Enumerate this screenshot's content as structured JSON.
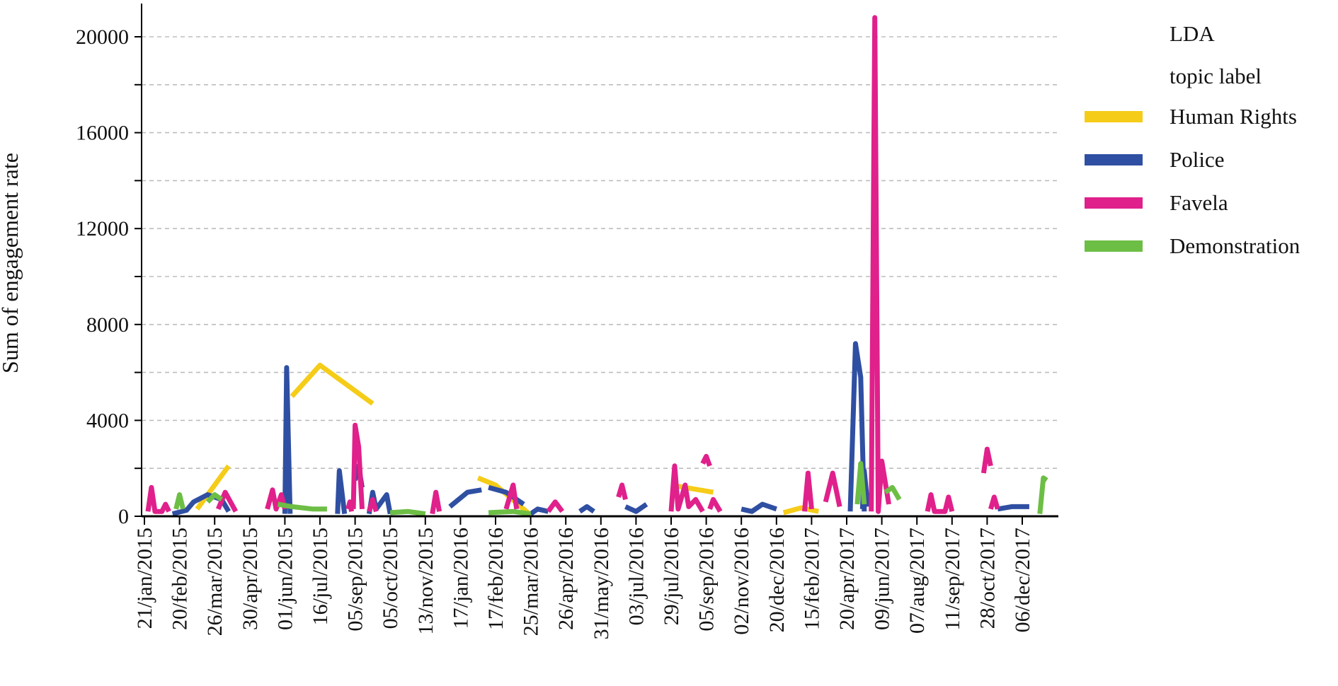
{
  "chart_data": {
    "type": "line",
    "title": "",
    "xlabel": "",
    "ylabel": "Sum of engagement rate",
    "ylim": [
      0,
      21000
    ],
    "yticks": [
      0,
      4000,
      8000,
      12000,
      16000,
      20000
    ],
    "grid": true,
    "legend_position": "top-right",
    "legend_title_lines": [
      "LDA",
      "topic label"
    ],
    "x_tick_labels": [
      "21/jan/2015",
      "20/feb/2015",
      "26/mar/2015",
      "30/apr/2015",
      "01/jun/2015",
      "16/jul/2015",
      "05/sep/2015",
      "05/oct/2015",
      "13/nov/2015",
      "17/jan/2016",
      "17/feb/2016",
      "25/mar/2016",
      "26/apr/2016",
      "31/may/2016",
      "03/jul/2016",
      "29/jul/2016",
      "05/sep/2016",
      "02/nov/2016",
      "20/dec/2016",
      "15/feb/2017",
      "20/apr/2017",
      "09/jun/2017",
      "07/aug/2017",
      "11/sep/2017",
      "28/oct/2017",
      "06/dec/2017"
    ],
    "series": [
      {
        "name": "Human Rights",
        "color": "#F5CC18",
        "segments": [
          [
            [
              1.5,
              300
            ],
            [
              2.4,
              2100
            ]
          ],
          [
            [
              4.2,
              5000
            ],
            [
              5.0,
              6300
            ],
            [
              6.5,
              4700
            ]
          ],
          [
            [
              9.5,
              1600
            ],
            [
              10.0,
              1300
            ],
            [
              11.0,
              50
            ]
          ],
          [
            [
              15.0,
              1300
            ],
            [
              16.2,
              1000
            ]
          ],
          [
            [
              18.2,
              150
            ],
            [
              18.7,
              350
            ],
            [
              19.2,
              200
            ]
          ]
        ]
      },
      {
        "name": "Police",
        "color": "#2F4FA2",
        "segments": [
          [
            [
              0.8,
              100
            ],
            [
              1.2,
              250
            ],
            [
              1.4,
              600
            ],
            [
              1.8,
              900
            ],
            [
              2.2,
              700
            ],
            [
              2.4,
              200
            ]
          ],
          [
            [
              4.0,
              100
            ],
            [
              4.05,
              6200
            ],
            [
              4.15,
              100
            ]
          ],
          [
            [
              5.5,
              100
            ],
            [
              5.55,
              1900
            ],
            [
              5.7,
              100
            ]
          ],
          [
            [
              6.0,
              1500
            ],
            [
              6.1,
              2100
            ],
            [
              6.2,
              1200
            ]
          ],
          [
            [
              6.4,
              100
            ],
            [
              6.5,
              1000
            ],
            [
              6.6,
              300
            ],
            [
              6.9,
              900
            ],
            [
              7.0,
              100
            ]
          ],
          [
            [
              8.7,
              400
            ],
            [
              9.2,
              1000
            ],
            [
              9.6,
              1100
            ]
          ],
          [
            [
              9.8,
              1200
            ],
            [
              10.3,
              1000
            ],
            [
              10.8,
              500
            ]
          ],
          [
            [
              11.0,
              100
            ],
            [
              11.2,
              300
            ],
            [
              11.5,
              200
            ]
          ],
          [
            [
              12.4,
              200
            ],
            [
              12.6,
              400
            ],
            [
              12.8,
              200
            ]
          ],
          [
            [
              13.7,
              400
            ],
            [
              14.0,
              200
            ],
            [
              14.3,
              500
            ]
          ],
          [
            [
              17.0,
              300
            ],
            [
              17.3,
              200
            ],
            [
              17.6,
              500
            ],
            [
              18.0,
              300
            ]
          ],
          [
            [
              20.1,
              200
            ],
            [
              20.25,
              7200
            ],
            [
              20.4,
              5800
            ],
            [
              20.5,
              200
            ]
          ],
          [
            [
              20.45,
              300
            ],
            [
              20.5,
              1900
            ],
            [
              20.6,
              400
            ]
          ],
          [
            [
              24.3,
              300
            ],
            [
              24.7,
              400
            ],
            [
              25.2,
              400
            ]
          ]
        ]
      },
      {
        "name": "Favela",
        "color": "#E0208B",
        "segments": [
          [
            [
              0.1,
              200
            ],
            [
              0.2,
              1200
            ],
            [
              0.3,
              200
            ],
            [
              0.5,
              200
            ],
            [
              0.6,
              500
            ],
            [
              0.7,
              200
            ]
          ],
          [
            [
              2.1,
              300
            ],
            [
              2.3,
              1000
            ],
            [
              2.6,
              200
            ]
          ],
          [
            [
              3.5,
              300
            ],
            [
              3.65,
              1100
            ],
            [
              3.75,
              300
            ],
            [
              3.9,
              900
            ],
            [
              4.0,
              300
            ]
          ],
          [
            [
              5.8,
              300
            ],
            [
              5.85,
              600
            ],
            [
              5.9,
              200
            ]
          ],
          [
            [
              5.95,
              300
            ],
            [
              6.0,
              3800
            ],
            [
              6.1,
              2900
            ],
            [
              6.2,
              300
            ]
          ],
          [
            [
              6.4,
              200
            ],
            [
              6.5,
              700
            ],
            [
              6.6,
              200
            ]
          ],
          [
            [
              8.2,
              100
            ],
            [
              8.3,
              1000
            ],
            [
              8.4,
              200
            ]
          ],
          [
            [
              10.3,
              300
            ],
            [
              10.5,
              1300
            ],
            [
              10.6,
              300
            ]
          ],
          [
            [
              11.5,
              200
            ],
            [
              11.7,
              600
            ],
            [
              11.9,
              200
            ]
          ],
          [
            [
              13.5,
              800
            ],
            [
              13.6,
              1300
            ],
            [
              13.7,
              700
            ]
          ],
          [
            [
              15.0,
              200
            ],
            [
              15.1,
              2100
            ],
            [
              15.2,
              300
            ],
            [
              15.4,
              1300
            ],
            [
              15.5,
              400
            ],
            [
              15.7,
              700
            ],
            [
              15.9,
              200
            ]
          ],
          [
            [
              15.9,
              2200
            ],
            [
              16.0,
              2500
            ],
            [
              16.1,
              2100
            ]
          ],
          [
            [
              16.1,
              300
            ],
            [
              16.2,
              700
            ],
            [
              16.4,
              200
            ]
          ],
          [
            [
              18.8,
              200
            ],
            [
              18.9,
              1800
            ],
            [
              19.0,
              300
            ]
          ],
          [
            [
              19.4,
              600
            ],
            [
              19.6,
              1800
            ],
            [
              19.8,
              400
            ]
          ],
          [
            [
              20.7,
              200
            ],
            [
              20.8,
              20800
            ],
            [
              20.9,
              200
            ],
            [
              21.0,
              2300
            ],
            [
              21.2,
              500
            ]
          ],
          [
            [
              22.3,
              200
            ],
            [
              22.4,
              900
            ],
            [
              22.5,
              200
            ],
            [
              22.8,
              200
            ],
            [
              22.9,
              800
            ],
            [
              23.0,
              200
            ]
          ],
          [
            [
              23.9,
              1800
            ],
            [
              24.0,
              2800
            ],
            [
              24.1,
              2100
            ]
          ],
          [
            [
              24.1,
              300
            ],
            [
              24.2,
              800
            ],
            [
              24.3,
              300
            ]
          ]
        ]
      },
      {
        "name": "Demonstration",
        "color": "#6DBE45",
        "segments": [
          [
            [
              0.9,
              300
            ],
            [
              1.0,
              900
            ],
            [
              1.1,
              300
            ]
          ],
          [
            [
              1.8,
              600
            ],
            [
              2.0,
              900
            ],
            [
              2.2,
              700
            ]
          ],
          [
            [
              3.8,
              500
            ],
            [
              4.2,
              400
            ],
            [
              4.8,
              300
            ],
            [
              5.2,
              300
            ]
          ],
          [
            [
              7.0,
              150
            ],
            [
              7.5,
              200
            ],
            [
              8.0,
              100
            ]
          ],
          [
            [
              9.8,
              150
            ],
            [
              10.5,
              200
            ],
            [
              11.0,
              100
            ]
          ],
          [
            [
              20.3,
              500
            ],
            [
              20.4,
              2200
            ],
            [
              20.5,
              500
            ]
          ],
          [
            [
              21.1,
              1000
            ],
            [
              21.3,
              1200
            ],
            [
              21.5,
              700
            ]
          ],
          [
            [
              25.5,
              100
            ],
            [
              25.6,
              1600
            ],
            [
              25.7,
              1500
            ]
          ]
        ]
      }
    ]
  }
}
